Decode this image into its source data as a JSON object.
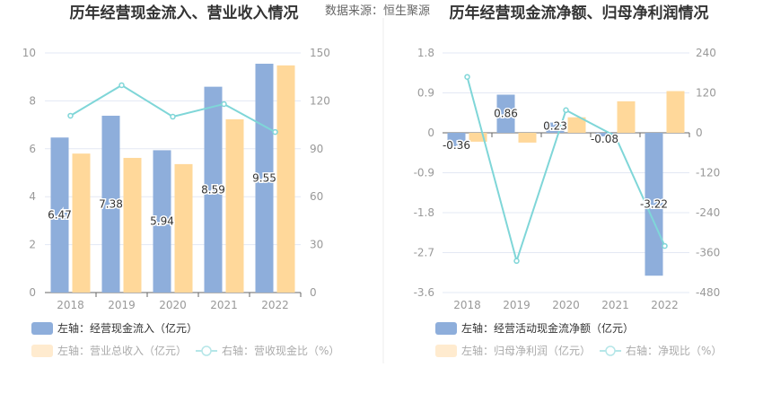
{
  "source": "数据来源：恒生聚源",
  "colors": {
    "blue": "#8eaedb",
    "orange": "#ffd89a",
    "line": "#7fd6d8",
    "grid": "#e3e8f4"
  },
  "chart_data": [
    {
      "type": "bar",
      "title": "历年经营现金流入、营业收入情况",
      "categories": [
        "2018",
        "2019",
        "2020",
        "2021",
        "2022"
      ],
      "left_axis": {
        "min": 0,
        "max": 10,
        "ticks": [
          "0",
          "2",
          "4",
          "6",
          "8",
          "10"
        ]
      },
      "right_axis": {
        "min": 0,
        "max": 150,
        "ticks": [
          "0",
          "30",
          "60",
          "90",
          "120",
          "150"
        ]
      },
      "series": [
        {
          "name": "左轴：经营现金流入（亿元）",
          "kind": "bar",
          "axis": "left",
          "values": [
            6.47,
            7.38,
            5.94,
            8.59,
            9.55
          ],
          "labels": [
            "6.47",
            "7.38",
            "5.94",
            "8.59",
            "9.55"
          ]
        },
        {
          "name": "左轴：营业总收入（亿元）",
          "kind": "bar",
          "axis": "left",
          "values": [
            5.8,
            5.62,
            5.36,
            7.23,
            9.48
          ]
        },
        {
          "name": "右轴：营收现金比（%）",
          "kind": "line",
          "axis": "right",
          "values": [
            110.7,
            129.8,
            110.1,
            118.0,
            100.5
          ]
        }
      ]
    },
    {
      "type": "bar",
      "title": "历年经营现金流净额、归母净利润情况",
      "categories": [
        "2018",
        "2019",
        "2020",
        "2021",
        "2022"
      ],
      "left_axis": {
        "min": -3.6,
        "max": 1.8,
        "ticks": [
          "-3.6",
          "-2.7",
          "-1.8",
          "-0.9",
          "0",
          "0.9",
          "1.8"
        ]
      },
      "right_axis": {
        "min": -480,
        "max": 240,
        "ticks": [
          "-480",
          "-360",
          "-240",
          "-120",
          "0",
          "120",
          "240"
        ]
      },
      "series": [
        {
          "name": "左轴：经营活动现金流净额（亿元）",
          "kind": "bar",
          "axis": "left",
          "values": [
            -0.36,
            0.86,
            0.23,
            -0.08,
            -3.22
          ],
          "labels": [
            "-0.36",
            "0.86",
            "0.23",
            "-0.08",
            "-3.22"
          ]
        },
        {
          "name": "左轴：归母净利润（亿元）",
          "kind": "bar",
          "axis": "left",
          "values": [
            -0.2,
            -0.22,
            0.35,
            0.71,
            0.94
          ]
        },
        {
          "name": "右轴：净现比（%）",
          "kind": "line",
          "axis": "right",
          "values": [
            168,
            -385,
            68,
            -10,
            -340
          ]
        }
      ]
    }
  ]
}
